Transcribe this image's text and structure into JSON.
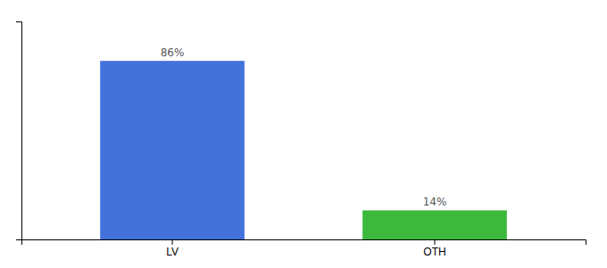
{
  "chart_data": {
    "type": "bar",
    "categories": [
      "LV",
      "OTH"
    ],
    "values": [
      86,
      14
    ],
    "value_labels": [
      "86%",
      "14%"
    ],
    "colors": [
      "#4472DB",
      "#3CB93C"
    ],
    "ylim": [
      0,
      105
    ],
    "data_labels": true,
    "tick_labels": "x",
    "grid": false
  }
}
